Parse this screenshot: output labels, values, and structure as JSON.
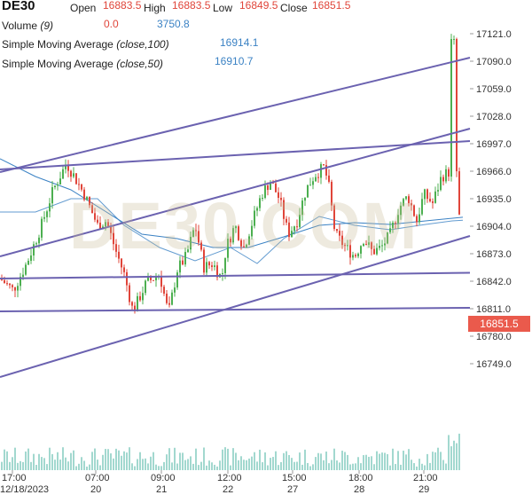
{
  "header": {
    "symbol": "DE30",
    "open_label": "Open",
    "open": "16883.5",
    "high_label": "High",
    "high": "16883.5",
    "low_label": "Low",
    "low": "16849.5",
    "close_label": "Close",
    "close": "16851.5",
    "volume_label": "Volume",
    "volume_param": "(9)",
    "volume_a": "0.0",
    "volume_b": "3750.8",
    "sma100_label": "Simple Moving Average",
    "sma100_param": "(close,100)",
    "sma100_value": "16914.1",
    "sma50_label": "Simple Moving Average",
    "sma50_param": "(close,50)",
    "sma50_value": "16910.7"
  },
  "watermark": "DE30.COM",
  "colors": {
    "up": "#4caf50",
    "down": "#e0453a",
    "sma": "#3b82c4",
    "trendline": "#6b62b0",
    "price_box": "#ea5a4c",
    "volume": "#56b8a8"
  },
  "chart_data": {
    "type": "candlestick",
    "current_price": 16851.5,
    "y_ticks": [
      17121.0,
      17090.0,
      17059.0,
      17028.0,
      16997.0,
      16966.0,
      16935.0,
      16904.0,
      16873.0,
      16842.0,
      16811.0,
      16780.0,
      16749.0
    ],
    "y_tick_labels": [
      "17121.0",
      "17090.0",
      "17059.0",
      "17028.0",
      "16997.0",
      "16966.0",
      "16935.0",
      "16904.0",
      "16873.0",
      "16842.0",
      "16811.0",
      "16780.0",
      "16749.0"
    ],
    "ylim": [
      16730,
      17128
    ],
    "x_labels": [
      {
        "time": "17:00",
        "date": "12/18/2023"
      },
      {
        "time": "07:00",
        "date": "20"
      },
      {
        "time": "09:00",
        "date": "21"
      },
      {
        "time": "12:00",
        "date": "22"
      },
      {
        "time": "15:00",
        "date": "27"
      },
      {
        "time": "18:00",
        "date": "28"
      },
      {
        "time": "21:00",
        "date": "29"
      }
    ],
    "anchor_points": [
      [
        0,
        16845
      ],
      [
        15,
        16832
      ],
      [
        30,
        16862
      ],
      [
        45,
        16900
      ],
      [
        60,
        16945
      ],
      [
        75,
        16975
      ],
      [
        85,
        16958
      ],
      [
        95,
        16940
      ],
      [
        110,
        16905
      ],
      [
        120,
        16910
      ],
      [
        130,
        16878
      ],
      [
        140,
        16850
      ],
      [
        150,
        16808
      ],
      [
        165,
        16840
      ],
      [
        180,
        16850
      ],
      [
        190,
        16805
      ],
      [
        200,
        16855
      ],
      [
        210,
        16870
      ],
      [
        220,
        16905
      ],
      [
        230,
        16858
      ],
      [
        240,
        16862
      ],
      [
        250,
        16845
      ],
      [
        255,
        16880
      ],
      [
        265,
        16905
      ],
      [
        275,
        16880
      ],
      [
        285,
        16910
      ],
      [
        295,
        16940
      ],
      [
        305,
        16955
      ],
      [
        315,
        16935
      ],
      [
        325,
        16895
      ],
      [
        335,
        16910
      ],
      [
        345,
        16945
      ],
      [
        355,
        16962
      ],
      [
        365,
        16970
      ],
      [
        370,
        16955
      ],
      [
        378,
        16895
      ],
      [
        390,
        16880
      ],
      [
        400,
        16870
      ],
      [
        410,
        16890
      ],
      [
        420,
        16875
      ],
      [
        430,
        16880
      ],
      [
        440,
        16895
      ],
      [
        450,
        16925
      ],
      [
        460,
        16938
      ],
      [
        470,
        16910
      ],
      [
        478,
        16940
      ],
      [
        488,
        16930
      ],
      [
        498,
        16960
      ],
      [
        506,
        16965
      ],
      [
        510,
        17120
      ],
      [
        513,
        17000
      ],
      [
        517,
        16930
      ],
      [
        522,
        16852
      ]
    ],
    "sma100": [
      [
        0,
        16980
      ],
      [
        40,
        16960
      ],
      [
        80,
        16945
      ],
      [
        120,
        16920
      ],
      [
        160,
        16895
      ],
      [
        200,
        16890
      ],
      [
        240,
        16880
      ],
      [
        280,
        16880
      ],
      [
        320,
        16892
      ],
      [
        360,
        16905
      ],
      [
        400,
        16908
      ],
      [
        440,
        16906
      ],
      [
        480,
        16910
      ],
      [
        522,
        16914.1
      ]
    ],
    "sma50": [
      [
        0,
        16920
      ],
      [
        40,
        16920
      ],
      [
        80,
        16935
      ],
      [
        110,
        16935
      ],
      [
        140,
        16905
      ],
      [
        180,
        16880
      ],
      [
        220,
        16865
      ],
      [
        260,
        16880
      ],
      [
        290,
        16862
      ],
      [
        320,
        16890
      ],
      [
        360,
        16915
      ],
      [
        400,
        16905
      ],
      [
        440,
        16900
      ],
      [
        480,
        16906
      ],
      [
        510,
        16910
      ],
      [
        522,
        16910.7
      ]
    ],
    "trendlines": [
      {
        "from": [
          0,
          16965
        ],
        "to": [
          530,
          17094
        ]
      },
      {
        "from": [
          0,
          16968
        ],
        "to": [
          530,
          17000
        ]
      },
      {
        "from": [
          0,
          16870
        ],
        "to": [
          530,
          17014
        ]
      },
      {
        "from": [
          0,
          16734
        ],
        "to": [
          530,
          16893
        ]
      },
      {
        "from": [
          0,
          16845
        ],
        "to": [
          530,
          16851.5
        ]
      },
      {
        "from": [
          0,
          16808
        ],
        "to": [
          530,
          16812
        ]
      }
    ]
  }
}
